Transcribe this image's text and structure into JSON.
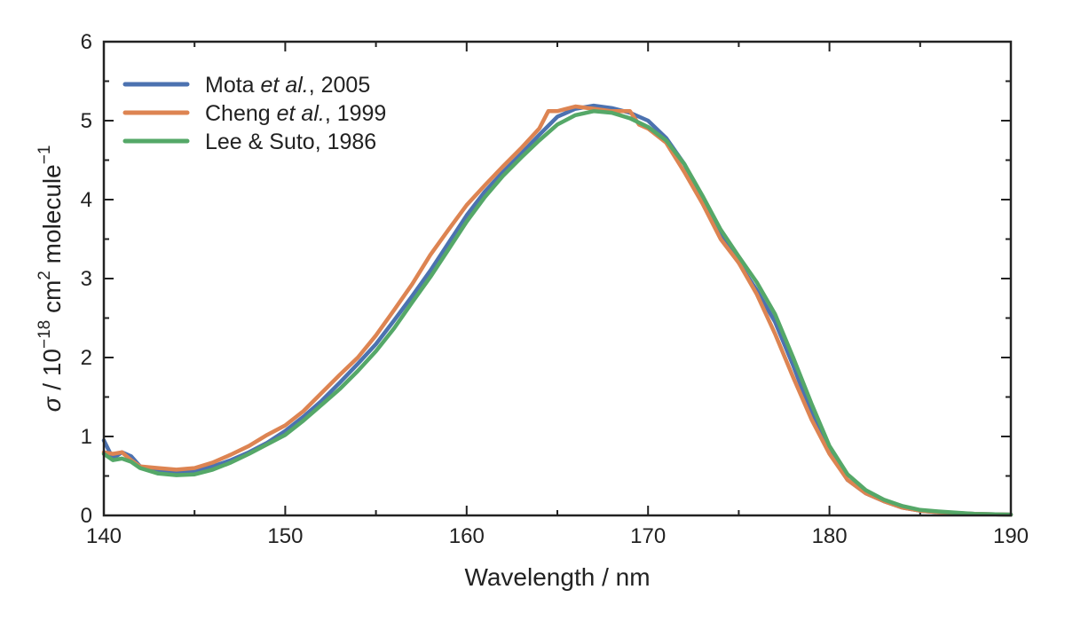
{
  "chart_data": {
    "type": "line",
    "xlabel": "Wavelength / nm",
    "ylabel": {
      "sigma": "σ",
      "prefix": " / 10",
      "exp1": "−18",
      "mid": " cm",
      "exp2": "2",
      "suffix": " molecule",
      "exp3": "−1"
    },
    "xlim": [
      140,
      190
    ],
    "ylim": [
      0,
      6
    ],
    "xticks": [
      140,
      150,
      160,
      170,
      180,
      190
    ],
    "yticks": [
      0,
      1,
      2,
      3,
      4,
      5,
      6
    ],
    "xminor": [
      145,
      155,
      165,
      175,
      185
    ],
    "yminor": [
      0.5,
      1.5,
      2.5,
      3.5,
      4.5,
      5.5
    ],
    "grid": false,
    "legend_position": "top-left",
    "series": [
      {
        "name": "Mota et al., 2005",
        "name_parts": {
          "pre": "Mota ",
          "ital": "et al.",
          "post": ", 2005"
        },
        "color": "#4C72B0",
        "x": [
          140,
          140.5,
          141,
          141.5,
          142,
          143,
          144,
          145,
          146,
          147,
          148,
          149,
          150,
          151,
          152,
          153,
          154,
          155,
          156,
          157,
          158,
          159,
          160,
          161,
          162,
          163,
          164,
          165,
          166,
          167,
          168,
          169,
          170,
          171,
          172,
          173,
          174,
          175,
          176,
          177,
          178,
          179,
          180,
          181,
          182,
          183,
          184,
          185,
          186,
          188,
          190
        ],
        "y": [
          0.95,
          0.72,
          0.8,
          0.75,
          0.62,
          0.57,
          0.55,
          0.56,
          0.62,
          0.7,
          0.8,
          0.92,
          1.07,
          1.25,
          1.45,
          1.68,
          1.92,
          2.17,
          2.47,
          2.78,
          3.1,
          3.45,
          3.8,
          4.1,
          4.35,
          4.58,
          4.82,
          5.05,
          5.15,
          5.19,
          5.16,
          5.1,
          5.0,
          4.78,
          4.45,
          4.0,
          3.55,
          3.2,
          2.85,
          2.45,
          1.9,
          1.3,
          0.8,
          0.45,
          0.28,
          0.18,
          0.1,
          0.06,
          0.04,
          0.02,
          0.01
        ]
      },
      {
        "name": "Cheng et al., 1999",
        "name_parts": {
          "pre": "Cheng ",
          "ital": "et al.",
          "post": ", 1999"
        },
        "color": "#DD8452",
        "x": [
          140,
          140.5,
          141,
          141.5,
          142,
          143,
          144,
          145,
          146,
          147,
          148,
          149,
          150,
          151,
          152,
          153,
          154,
          155,
          156,
          157,
          158,
          159,
          160,
          161,
          162,
          163,
          164,
          164.5,
          165,
          166,
          167,
          168,
          169,
          169.5,
          170,
          171,
          172,
          173,
          174,
          175,
          176,
          177,
          178,
          179,
          180,
          181,
          182,
          183,
          184,
          185,
          186,
          188,
          190
        ],
        "y": [
          0.8,
          0.78,
          0.8,
          0.7,
          0.62,
          0.6,
          0.58,
          0.6,
          0.67,
          0.77,
          0.88,
          1.02,
          1.14,
          1.32,
          1.55,
          1.78,
          2.0,
          2.28,
          2.6,
          2.93,
          3.3,
          3.62,
          3.93,
          4.18,
          4.42,
          4.65,
          4.9,
          5.12,
          5.12,
          5.18,
          5.15,
          5.12,
          5.12,
          4.95,
          4.9,
          4.72,
          4.35,
          3.95,
          3.5,
          3.2,
          2.8,
          2.3,
          1.75,
          1.22,
          0.78,
          0.45,
          0.28,
          0.18,
          0.1,
          0.06,
          0.04,
          0.02,
          0.01
        ]
      },
      {
        "name": "Lee & Suto, 1986",
        "name_parts": {
          "pre": "Lee & Suto, 1986",
          "ital": "",
          "post": ""
        },
        "color": "#55A868",
        "x": [
          140,
          140.5,
          141,
          141.5,
          142,
          143,
          144,
          145,
          146,
          147,
          148,
          149,
          150,
          151,
          152,
          153,
          154,
          155,
          156,
          157,
          158,
          159,
          160,
          161,
          162,
          163,
          164,
          165,
          166,
          167,
          168,
          169,
          170,
          171,
          172,
          173,
          174,
          175,
          176,
          177,
          178,
          179,
          180,
          181,
          182,
          183,
          184,
          185,
          186,
          188,
          190
        ],
        "y": [
          0.78,
          0.7,
          0.72,
          0.68,
          0.6,
          0.53,
          0.51,
          0.52,
          0.58,
          0.67,
          0.78,
          0.9,
          1.02,
          1.2,
          1.4,
          1.6,
          1.83,
          2.08,
          2.37,
          2.7,
          3.02,
          3.37,
          3.72,
          4.03,
          4.3,
          4.53,
          4.75,
          4.95,
          5.07,
          5.12,
          5.1,
          5.03,
          4.92,
          4.75,
          4.45,
          4.05,
          3.62,
          3.28,
          2.95,
          2.55,
          2.0,
          1.42,
          0.88,
          0.52,
          0.32,
          0.2,
          0.12,
          0.07,
          0.05,
          0.02,
          0.01
        ]
      }
    ]
  }
}
